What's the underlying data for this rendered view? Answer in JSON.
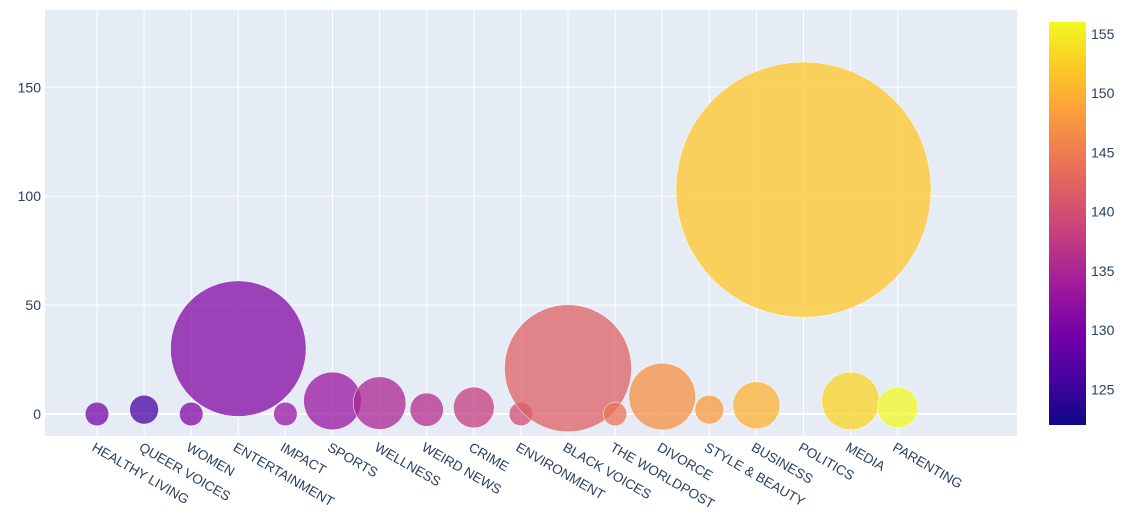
{
  "chart_data": {
    "type": "scatter",
    "subtype": "bubble",
    "title": "",
    "xlabel": "",
    "ylabel": "",
    "categories": [
      "HEALTHY LIVING",
      "QUEER VOICES",
      "WOMEN",
      "ENTERTAINMENT",
      "IMPACT",
      "SPORTS",
      "WELLNESS",
      "WEIRD NEWS",
      "CRIME",
      "ENVIRONMENT",
      "BLACK VOICES",
      "THE WORLDPOST",
      "DIVORCE",
      "STYLE & BEAUTY",
      "BUSINESS",
      "POLITICS",
      "MEDIA",
      "PARENTING"
    ],
    "y": [
      0,
      2,
      0,
      30,
      0,
      6,
      5,
      2,
      3,
      0,
      21,
      0,
      8,
      2,
      4,
      103,
      6,
      3
    ],
    "size": [
      1,
      1.5,
      1,
      33,
      1,
      6,
      5,
      2,
      3,
      1,
      29,
      1,
      8,
      1.5,
      4,
      117,
      6,
      3
    ],
    "color": [
      130,
      126,
      131,
      131,
      133,
      133,
      135,
      136,
      138,
      140,
      142,
      144,
      147,
      148,
      150,
      152,
      153,
      156
    ],
    "ylim": [
      -10,
      180
    ],
    "yticks": [
      0,
      50,
      100,
      150
    ],
    "grid": true,
    "colorbar": {
      "min": 122,
      "max": 156,
      "ticks": [
        125,
        130,
        135,
        140,
        145,
        150,
        155
      ],
      "colorscale": [
        "#0d0887",
        "#46039f",
        "#7201a8",
        "#9c179e",
        "#bd3786",
        "#d8576b",
        "#ed7953",
        "#fb9f3a",
        "#fdca26",
        "#f0f921"
      ]
    },
    "background": "#e5ecf6",
    "bubble_opacity": 0.75
  }
}
